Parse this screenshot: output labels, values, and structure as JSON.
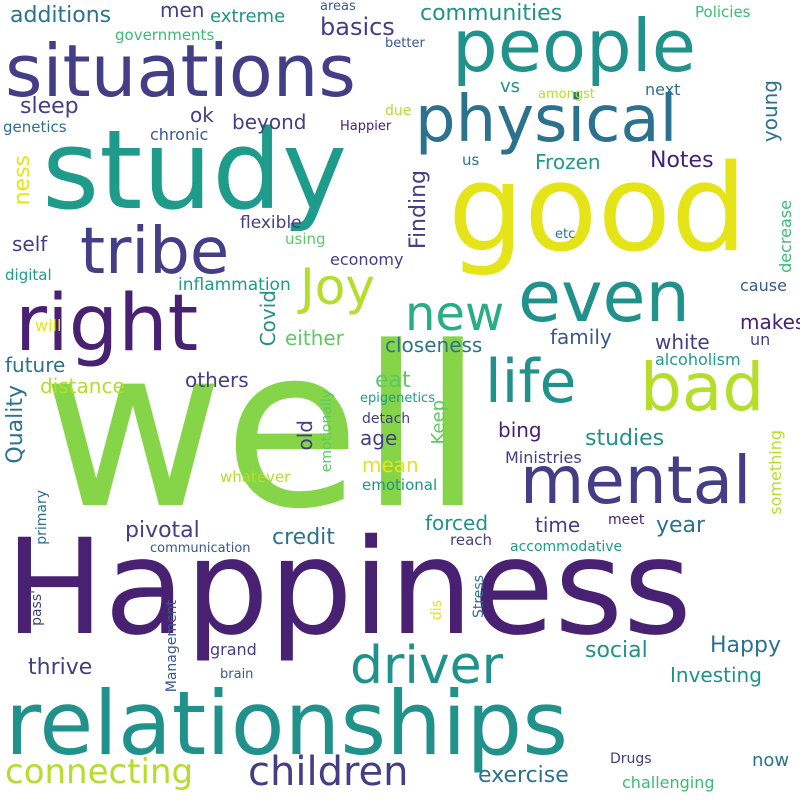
{
  "palette": {
    "dark_purple": "#482173",
    "indigo": "#433e85",
    "blue": "#38598c",
    "steel": "#2c728e",
    "teal": "#21918c",
    "sea": "#1e9b8a",
    "green": "#28ae80",
    "mint": "#3bbb75",
    "lime": "#5ec962",
    "chartreuse": "#86d549",
    "yellow_green": "#b5de2b",
    "yellow": "#e5e419"
  },
  "words": [
    "Happiness",
    "well",
    "good",
    "study",
    "relationships",
    "situations",
    "people",
    "physical",
    "even",
    "right",
    "tribe",
    "bad",
    "mental",
    "life",
    "driver",
    "new",
    "Joy",
    "children",
    "connecting",
    "communities",
    "basics",
    "additions",
    "extreme",
    "men",
    "areas",
    "better",
    "Policies",
    "governments",
    "sleep",
    "ok",
    "vs",
    "amongst",
    "next",
    "genetics",
    "chronic",
    "Happier",
    "due",
    "beyond",
    "young",
    "us",
    "Frozen",
    "Notes",
    "ness",
    "self",
    "flexible",
    "using",
    "etc",
    "decrease",
    "digital",
    "inflammation",
    "economy",
    "Finding",
    "cause",
    "will",
    "either",
    "white",
    "makes",
    "closeness",
    "family",
    "un",
    "alcoholism",
    "Covid",
    "future",
    "distance",
    "others",
    "eat",
    "Quality",
    "epigenetics",
    "emotionally",
    "Keep",
    "detach",
    "age",
    "old",
    "bing",
    "studies",
    "mean",
    "Ministries",
    "whatever",
    "emotional",
    "something",
    "pivotal",
    "credit",
    "forced",
    "time",
    "meet",
    "year",
    "primary",
    "communication",
    "reach",
    "accommodative",
    "Stress",
    "dis",
    "pass'",
    "Management",
    "grand",
    "brain",
    "thrive",
    "social",
    "Happy",
    "Investing",
    "exercise",
    "Drugs",
    "challenging",
    "now"
  ]
}
